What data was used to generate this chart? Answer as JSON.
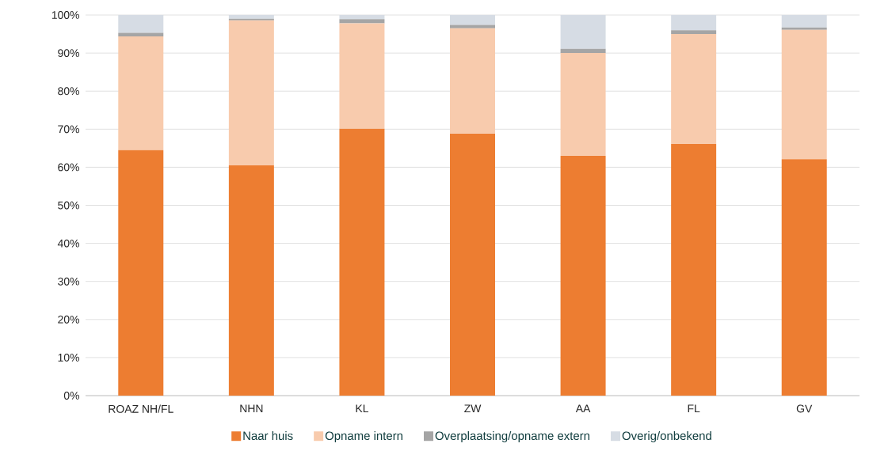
{
  "chart_data": {
    "type": "bar",
    "stacked": true,
    "categories": [
      "ROAZ NH/FL",
      "NHN",
      "KL",
      "ZW",
      "AA",
      "FL",
      "GV"
    ],
    "series": [
      {
        "name": "Naar huis",
        "color": "#ed7d31",
        "values": [
          64.5,
          60.5,
          70.1,
          68.8,
          63.0,
          66.1,
          62.1
        ]
      },
      {
        "name": "Opname intern",
        "color": "#f8cbad",
        "values": [
          29.9,
          38.1,
          27.7,
          27.7,
          27.0,
          28.9,
          34.0
        ]
      },
      {
        "name": "Overplaatsing/opname extern",
        "color": "#a5a5a5",
        "values": [
          0.9,
          0.4,
          1.1,
          0.9,
          1.1,
          1.0,
          0.6
        ]
      },
      {
        "name": "Overig/onbekend",
        "color": "#d6dce4",
        "values": [
          4.7,
          1.0,
          1.1,
          2.6,
          8.9,
          4.0,
          3.3
        ]
      }
    ],
    "ylim": [
      0,
      100
    ],
    "yticks": [
      {
        "value": 0,
        "label": "0%"
      },
      {
        "value": 10,
        "label": "10%"
      },
      {
        "value": 20,
        "label": "20%"
      },
      {
        "value": 30,
        "label": "30%"
      },
      {
        "value": 40,
        "label": "40%"
      },
      {
        "value": 50,
        "label": "50%"
      },
      {
        "value": 60,
        "label": "60%"
      },
      {
        "value": 70,
        "label": "70%"
      },
      {
        "value": 80,
        "label": "80%"
      },
      {
        "value": 90,
        "label": "90%"
      },
      {
        "value": 100,
        "label": "100%"
      }
    ],
    "grid": "y",
    "legend": "bottom"
  }
}
